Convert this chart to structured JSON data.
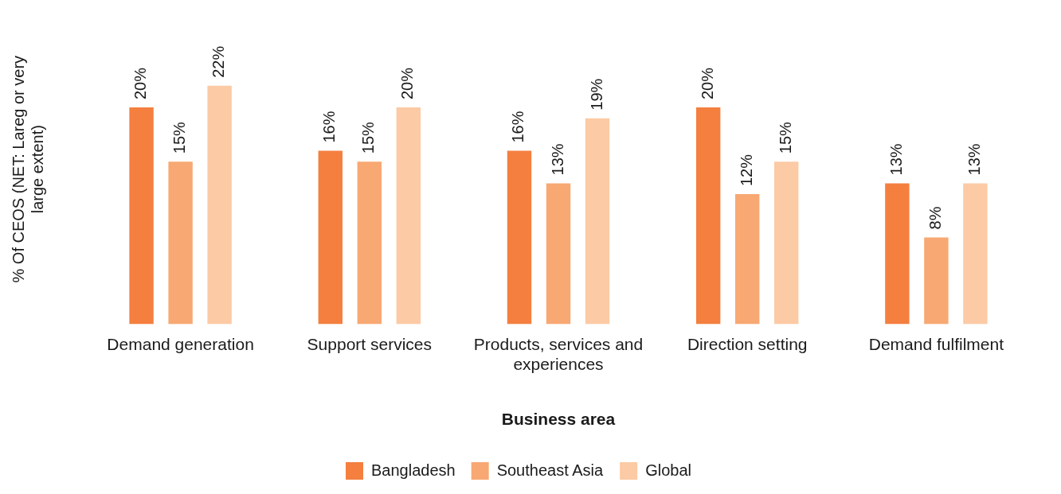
{
  "chart_data": {
    "type": "bar",
    "xlabel": "Business area",
    "ylabel": "% Of CEOS (NET: Lareg or very large extent)",
    "categories": [
      "Demand generation",
      "Support services",
      "Products, services and experiences",
      "Direction setting",
      "Demand fulfilment"
    ],
    "series": [
      {
        "name": "Bangladesh",
        "color": "#f47f3f",
        "values": [
          20,
          16,
          16,
          20,
          13
        ],
        "value_labels": [
          "20%",
          "16%",
          "16%",
          "20%",
          "13%"
        ]
      },
      {
        "name": "Southeast Asia",
        "color": "#f8a872",
        "values": [
          15,
          15,
          13,
          12,
          8
        ],
        "value_labels": [
          "15%",
          "15%",
          "13%",
          "12%",
          "8%"
        ]
      },
      {
        "name": "Global",
        "color": "#fccaa4",
        "values": [
          22,
          20,
          19,
          15,
          13
        ],
        "value_labels": [
          "22%",
          "20%",
          "19%",
          "15%",
          "13%"
        ]
      }
    ],
    "legend": "bottom",
    "grid": false
  }
}
